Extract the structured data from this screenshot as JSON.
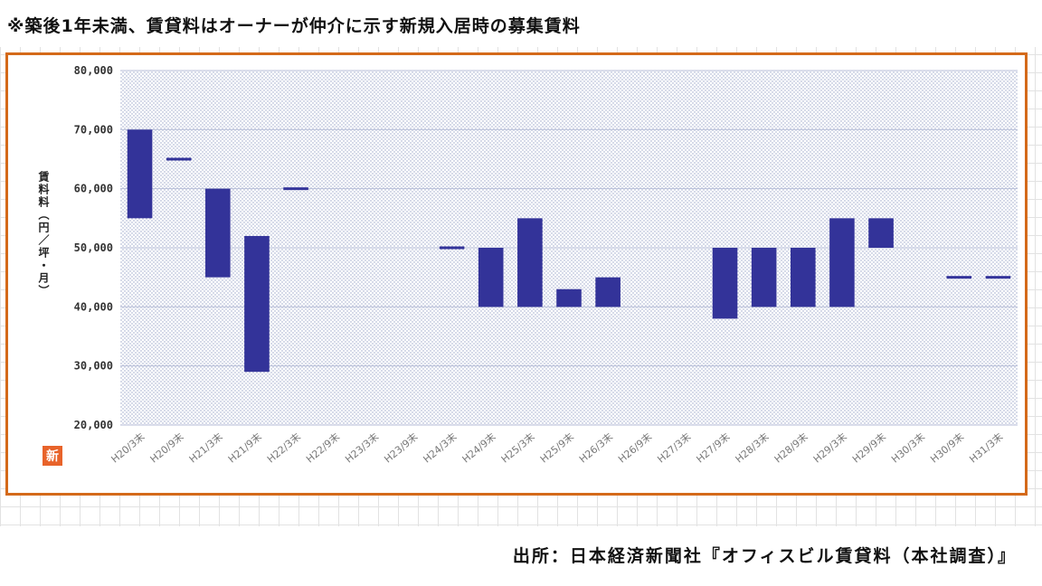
{
  "header": {
    "note": "※築後1年未満、賃貸料はオーナーが仲介に示す新規入居時の募集賃料"
  },
  "footer": {
    "source": "出所：日本経済新聞社『オフィスビル賃貸料（本社調査）』"
  },
  "logo_text": "新",
  "colors": {
    "bar": "#333399",
    "frame": "#d46a1a"
  },
  "chart_data": {
    "type": "bar",
    "subtype": "floating-range",
    "ylabel": "賃料料（円／坪・月）",
    "ylim": [
      20000,
      80000
    ],
    "yticks": [
      "20,000",
      "30,000",
      "40,000",
      "50,000",
      "60,000",
      "70,000",
      "80,000"
    ],
    "ytick_values": [
      20000,
      30000,
      40000,
      50000,
      60000,
      70000,
      80000
    ],
    "grid": true,
    "categories": [
      "H20/3末",
      "H20/9末",
      "H21/3末",
      "H21/9末",
      "H22/3末",
      "H22/9末",
      "H23/3末",
      "H23/9末",
      "H24/3末",
      "H24/9末",
      "H25/3末",
      "H25/9末",
      "H26/3末",
      "H26/9末",
      "H27/3末",
      "H27/9末",
      "H28/3末",
      "H28/9末",
      "H29/3末",
      "H29/9末",
      "H30/3末",
      "H30/9末",
      "H31/3末"
    ],
    "ranges": [
      [
        55000,
        70000
      ],
      [
        65000,
        65000
      ],
      [
        45000,
        60000
      ],
      [
        29000,
        52000
      ],
      [
        60000,
        60000
      ],
      null,
      null,
      null,
      [
        50000,
        50000
      ],
      [
        40000,
        50000
      ],
      [
        40000,
        55000
      ],
      [
        40000,
        43000
      ],
      [
        40000,
        45000
      ],
      null,
      null,
      [
        38000,
        50000
      ],
      [
        40000,
        50000
      ],
      [
        40000,
        50000
      ],
      [
        40000,
        55000
      ],
      [
        50000,
        55000
      ],
      null,
      [
        45000,
        45000
      ],
      [
        45000,
        45000
      ]
    ]
  }
}
